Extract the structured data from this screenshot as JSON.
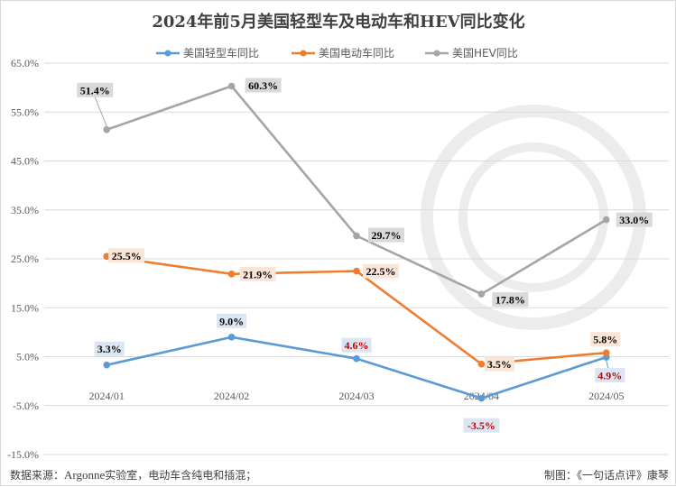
{
  "chart_data": {
    "type": "line",
    "title": "2024年前5月美国轻型车及电动车和HEV同比变化",
    "categories": [
      "2024/01",
      "2024/02",
      "2024/03",
      "2024/04",
      "2024/05"
    ],
    "ylim": [
      -15,
      65
    ],
    "yticks": [
      "65.0%",
      "55.0%",
      "45.0%",
      "35.0%",
      "25.0%",
      "15.0%",
      "5.0%",
      "-5.0%",
      "-15.0%"
    ],
    "ytick_values": [
      65,
      55,
      45,
      35,
      25,
      15,
      5,
      -5,
      -15
    ],
    "grid": true,
    "legend_position": "top",
    "series": [
      {
        "name": "美国轻型车同比",
        "color": "#5b9bd5",
        "label_bg": "#dce6f2",
        "values": [
          3.3,
          9.0,
          4.6,
          -3.5,
          4.9
        ],
        "labels": [
          "3.3%",
          "9.0%",
          "4.6%",
          "-3.5%",
          "4.9%"
        ],
        "label_colors": [
          "#000000",
          "#000000",
          "#c00000",
          "#c00000",
          "#c00000"
        ]
      },
      {
        "name": "美国电动车同比",
        "color": "#ed7d31",
        "label_bg": "#fbe5d6",
        "values": [
          25.5,
          21.9,
          22.5,
          3.5,
          5.8
        ],
        "labels": [
          "25.5%",
          "21.9%",
          "22.5%",
          "3.5%",
          "5.8%"
        ],
        "label_colors": [
          "#000000",
          "#000000",
          "#000000",
          "#000000",
          "#000000"
        ]
      },
      {
        "name": "美国HEV同比",
        "color": "#a5a5a5",
        "label_bg": "#d9d9d9",
        "values": [
          51.4,
          60.3,
          29.7,
          17.8,
          33.0
        ],
        "labels": [
          "51.4%",
          "60.3%",
          "29.7%",
          "17.8%",
          "33.0%"
        ],
        "label_colors": [
          "#000000",
          "#000000",
          "#000000",
          "#000000",
          "#000000"
        ]
      }
    ]
  },
  "footer": {
    "source_prefix": "数据来源：",
    "source_en": "Argonne",
    "source_suffix": "实验室，电动车含纯电和插混；",
    "credit": "制图：《一句话点评》康琴"
  }
}
